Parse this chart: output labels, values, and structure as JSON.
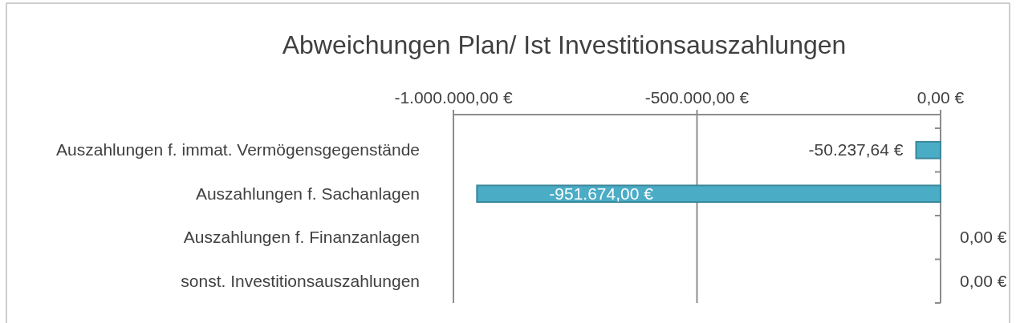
{
  "chart_data": {
    "type": "bar",
    "orientation": "horizontal",
    "title": "Abweichungen Plan/ Ist Investitionsauszahlungen",
    "categories": [
      "Auszahlungen f. immat. Vermögensgegenstände",
      "Auszahlungen f. Sachanlagen",
      "Auszahlungen f. Finanzanlagen",
      "sonst. Investitionsauszahlungen"
    ],
    "values": [
      -50237.64,
      -951674,
      0,
      0
    ],
    "value_labels": [
      "-50.237,64 €",
      "-951.674,00 €",
      "0,00 €",
      "0,00 €"
    ],
    "color": "#4bacc6",
    "xlim": [
      -1000000,
      0
    ],
    "xticks": [
      {
        "value": -1000000,
        "label": "-1.000.000,00 €"
      },
      {
        "value": -500000,
        "label": "-500.000,00 €"
      },
      {
        "value": 0,
        "label": "0,00 €"
      }
    ],
    "grid": "x"
  }
}
